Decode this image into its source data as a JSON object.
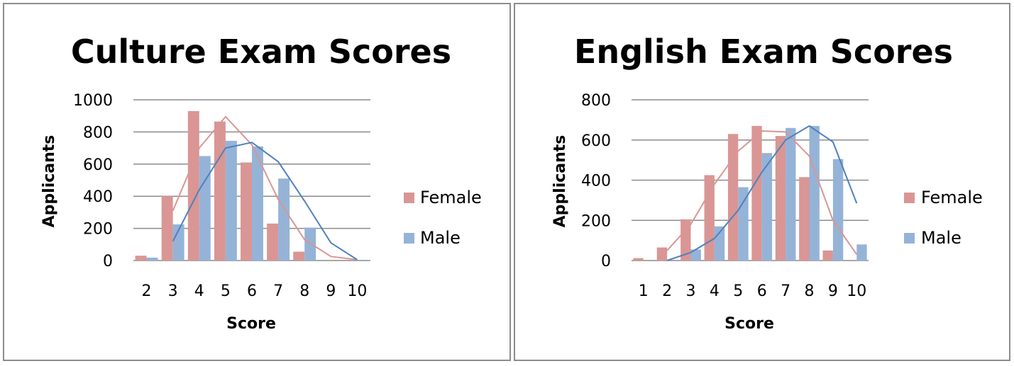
{
  "chart_data": [
    {
      "type": "bar",
      "title": "Culture Exam Scores",
      "xlabel": "Score",
      "ylabel": "Applicants",
      "categories": [
        "2",
        "3",
        "4",
        "5",
        "6",
        "7",
        "8",
        "9",
        "10"
      ],
      "ylim": [
        0,
        1000
      ],
      "yticks": [
        0,
        200,
        400,
        600,
        800,
        1000
      ],
      "grid": true,
      "legend_position": "right",
      "series": [
        {
          "name": "Female",
          "color": "#d99694",
          "values": [
            30,
            400,
            930,
            865,
            610,
            230,
            55,
            0,
            0
          ]
        },
        {
          "name": "Male",
          "color": "#95b3d7",
          "values": [
            18,
            225,
            650,
            745,
            710,
            510,
            205,
            0,
            0
          ]
        }
      ],
      "trendlines": [
        {
          "series": "Female",
          "color": "#d99694",
          "values": [
            null,
            310,
            700,
            895,
            720,
            380,
            130,
            25,
            5
          ]
        },
        {
          "series": "Male",
          "color": "#4f81bd",
          "values": [
            null,
            120,
            440,
            700,
            735,
            615,
            370,
            110,
            5
          ]
        }
      ]
    },
    {
      "type": "bar",
      "title": "English Exam Scores",
      "xlabel": "Score",
      "ylabel": "Applicants",
      "categories": [
        "1",
        "2",
        "3",
        "4",
        "5",
        "6",
        "7",
        "8",
        "9",
        "10"
      ],
      "ylim": [
        0,
        800
      ],
      "yticks": [
        0,
        200,
        400,
        600,
        800
      ],
      "grid": true,
      "legend_position": "right",
      "series": [
        {
          "name": "Female",
          "color": "#d99694",
          "values": [
            12,
            65,
            205,
            425,
            630,
            670,
            620,
            415,
            50,
            0
          ]
        },
        {
          "name": "Male",
          "color": "#95b3d7",
          "values": [
            0,
            0,
            55,
            170,
            365,
            535,
            660,
            670,
            505,
            80
          ]
        }
      ],
      "trendlines": [
        {
          "series": "Female",
          "color": "#d99694",
          "values": [
            null,
            50,
            180,
            380,
            545,
            645,
            640,
            520,
            200,
            30
          ]
        },
        {
          "series": "Male",
          "color": "#4f81bd",
          "values": [
            null,
            0,
            40,
            110,
            250,
            440,
            600,
            670,
            590,
            285
          ]
        }
      ]
    }
  ]
}
